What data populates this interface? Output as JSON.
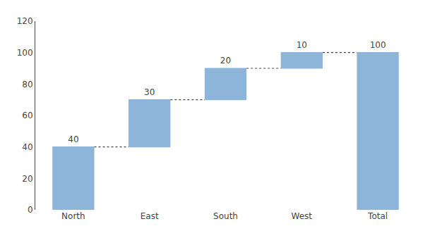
{
  "chart_data": {
    "type": "waterfall",
    "categories": [
      "North",
      "East",
      "South",
      "West",
      "Total"
    ],
    "values": [
      40,
      30,
      20,
      10,
      100
    ],
    "is_total": [
      false,
      false,
      false,
      false,
      true
    ],
    "color": "#8db4d9",
    "ylim": [
      0,
      120
    ],
    "yticks": [
      0,
      20,
      40,
      60,
      80,
      100,
      120
    ],
    "grid": false,
    "data_labels": true
  }
}
